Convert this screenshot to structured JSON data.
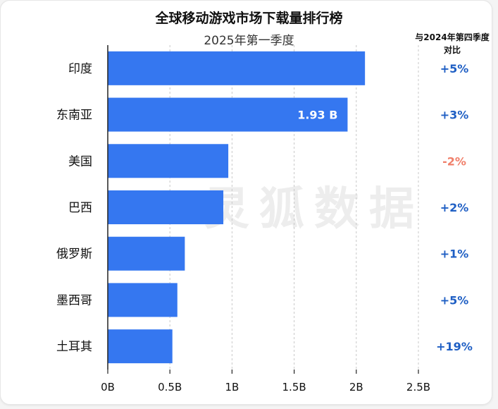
{
  "header": {
    "title": "全球移动游戏市场下载量排行榜",
    "subtitle": "2025年第一季度",
    "comparison_title_line1": "与2024年第四季度",
    "comparison_title_line2": "对比"
  },
  "watermark": "灵狐数据",
  "colors": {
    "bar": "#3577f0",
    "positive": "#1f5fc4",
    "negative": "#f07f6a"
  },
  "chart_data": {
    "type": "bar",
    "orientation": "horizontal",
    "categories": [
      "印度",
      "东南亚",
      "美国",
      "巴西",
      "俄罗斯",
      "墨西哥",
      "土耳其"
    ],
    "values": [
      2.07,
      1.93,
      0.97,
      0.93,
      0.62,
      0.56,
      0.52
    ],
    "unit": "B",
    "xlim": [
      0,
      2.5
    ],
    "xticks": [
      "0B",
      "0.5B",
      "1B",
      "1.5B",
      "2B",
      "2.5B"
    ],
    "xtick_values": [
      0,
      0.5,
      1,
      1.5,
      2,
      2.5
    ],
    "grid": "vertical dashed",
    "data_labels": [
      {
        "category": "东南亚",
        "text": "1.93 B"
      }
    ],
    "comparison": [
      "+5%",
      "+3%",
      "-2%",
      "+2%",
      "+1%",
      "+5%",
      "+19%"
    ]
  }
}
